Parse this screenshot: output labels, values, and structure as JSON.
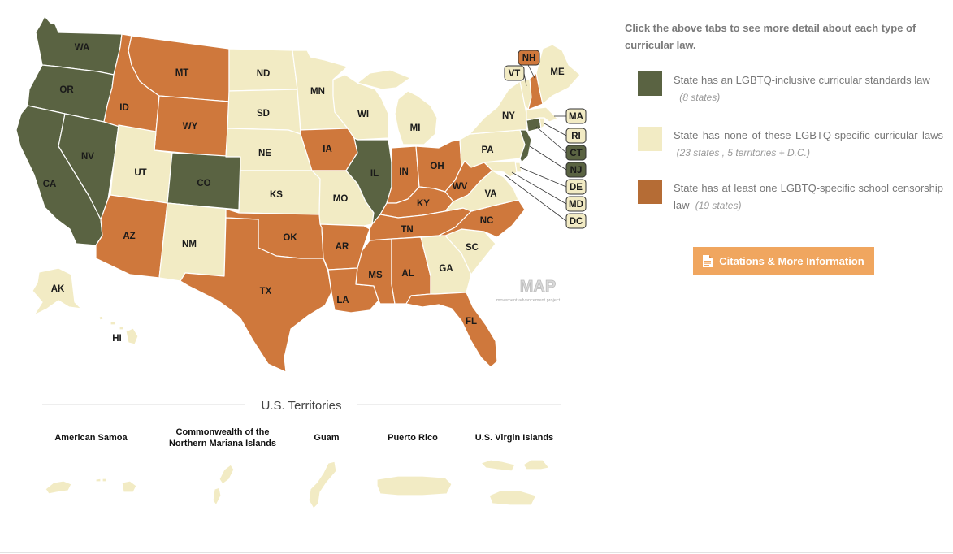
{
  "colors": {
    "inclusive": "#5a6342",
    "none": "#f2ebc4",
    "censorship": "#cf783c",
    "legend_censorship": "#b56c35",
    "button": "#f0a65f"
  },
  "sidebar": {
    "intro": "Click the above tabs to see more detail about each type of curricular law.",
    "legend": [
      {
        "text": "State has an LGBTQ-inclusive curricular standards law",
        "count": "(8 states)"
      },
      {
        "text": "State has none of these LGBTQ-specific curricular laws",
        "count": "(23 states , 5 territories + D.C.)"
      },
      {
        "text": "State has at least one LGBTQ-specific school censorship law",
        "count": "(19 states)"
      }
    ],
    "citations_button": "Citations & More Information",
    "citations_icon": "document-icon"
  },
  "map": {
    "watermark": "MAP",
    "watermark_sub": "movement advancement project",
    "states": [
      {
        "abbr": "WA",
        "category": "inclusive"
      },
      {
        "abbr": "OR",
        "category": "inclusive"
      },
      {
        "abbr": "CA",
        "category": "inclusive"
      },
      {
        "abbr": "NV",
        "category": "inclusive"
      },
      {
        "abbr": "CO",
        "category": "inclusive"
      },
      {
        "abbr": "IL",
        "category": "inclusive"
      },
      {
        "abbr": "CT",
        "category": "inclusive"
      },
      {
        "abbr": "NJ",
        "category": "inclusive"
      },
      {
        "abbr": "ID",
        "category": "censorship"
      },
      {
        "abbr": "MT",
        "category": "censorship"
      },
      {
        "abbr": "WY",
        "category": "censorship"
      },
      {
        "abbr": "AZ",
        "category": "censorship"
      },
      {
        "abbr": "TX",
        "category": "censorship"
      },
      {
        "abbr": "OK",
        "category": "censorship"
      },
      {
        "abbr": "IA",
        "category": "censorship"
      },
      {
        "abbr": "AR",
        "category": "censorship"
      },
      {
        "abbr": "LA",
        "category": "censorship"
      },
      {
        "abbr": "MS",
        "category": "censorship"
      },
      {
        "abbr": "AL",
        "category": "censorship"
      },
      {
        "abbr": "TN",
        "category": "censorship"
      },
      {
        "abbr": "KY",
        "category": "censorship"
      },
      {
        "abbr": "IN",
        "category": "censorship"
      },
      {
        "abbr": "OH",
        "category": "censorship"
      },
      {
        "abbr": "WV",
        "category": "censorship"
      },
      {
        "abbr": "NC",
        "category": "censorship"
      },
      {
        "abbr": "FL",
        "category": "censorship"
      },
      {
        "abbr": "NH",
        "category": "censorship"
      },
      {
        "abbr": "ND",
        "category": "none"
      },
      {
        "abbr": "SD",
        "category": "none"
      },
      {
        "abbr": "NE",
        "category": "none"
      },
      {
        "abbr": "KS",
        "category": "none"
      },
      {
        "abbr": "MN",
        "category": "none"
      },
      {
        "abbr": "WI",
        "category": "none"
      },
      {
        "abbr": "MI",
        "category": "none"
      },
      {
        "abbr": "MO",
        "category": "none"
      },
      {
        "abbr": "UT",
        "category": "none"
      },
      {
        "abbr": "NM",
        "category": "none"
      },
      {
        "abbr": "AK",
        "category": "none"
      },
      {
        "abbr": "HI",
        "category": "none"
      },
      {
        "abbr": "GA",
        "category": "none"
      },
      {
        "abbr": "SC",
        "category": "none"
      },
      {
        "abbr": "VA",
        "category": "none"
      },
      {
        "abbr": "PA",
        "category": "none"
      },
      {
        "abbr": "NY",
        "category": "none"
      },
      {
        "abbr": "VT",
        "category": "none"
      },
      {
        "abbr": "ME",
        "category": "none"
      },
      {
        "abbr": "MA",
        "category": "none"
      },
      {
        "abbr": "RI",
        "category": "none"
      },
      {
        "abbr": "DE",
        "category": "none"
      },
      {
        "abbr": "MD",
        "category": "none"
      },
      {
        "abbr": "DC",
        "category": "none"
      }
    ]
  },
  "territories": {
    "title": "U.S. Territories",
    "items": [
      {
        "name": "American Samoa",
        "category": "none"
      },
      {
        "name_line1": "Commonwealth of the",
        "name_line2": "Northern Mariana Islands",
        "category": "none"
      },
      {
        "name": "Guam",
        "category": "none"
      },
      {
        "name": "Puerto Rico",
        "category": "none"
      },
      {
        "name": "U.S. Virgin Islands",
        "category": "none"
      }
    ]
  }
}
